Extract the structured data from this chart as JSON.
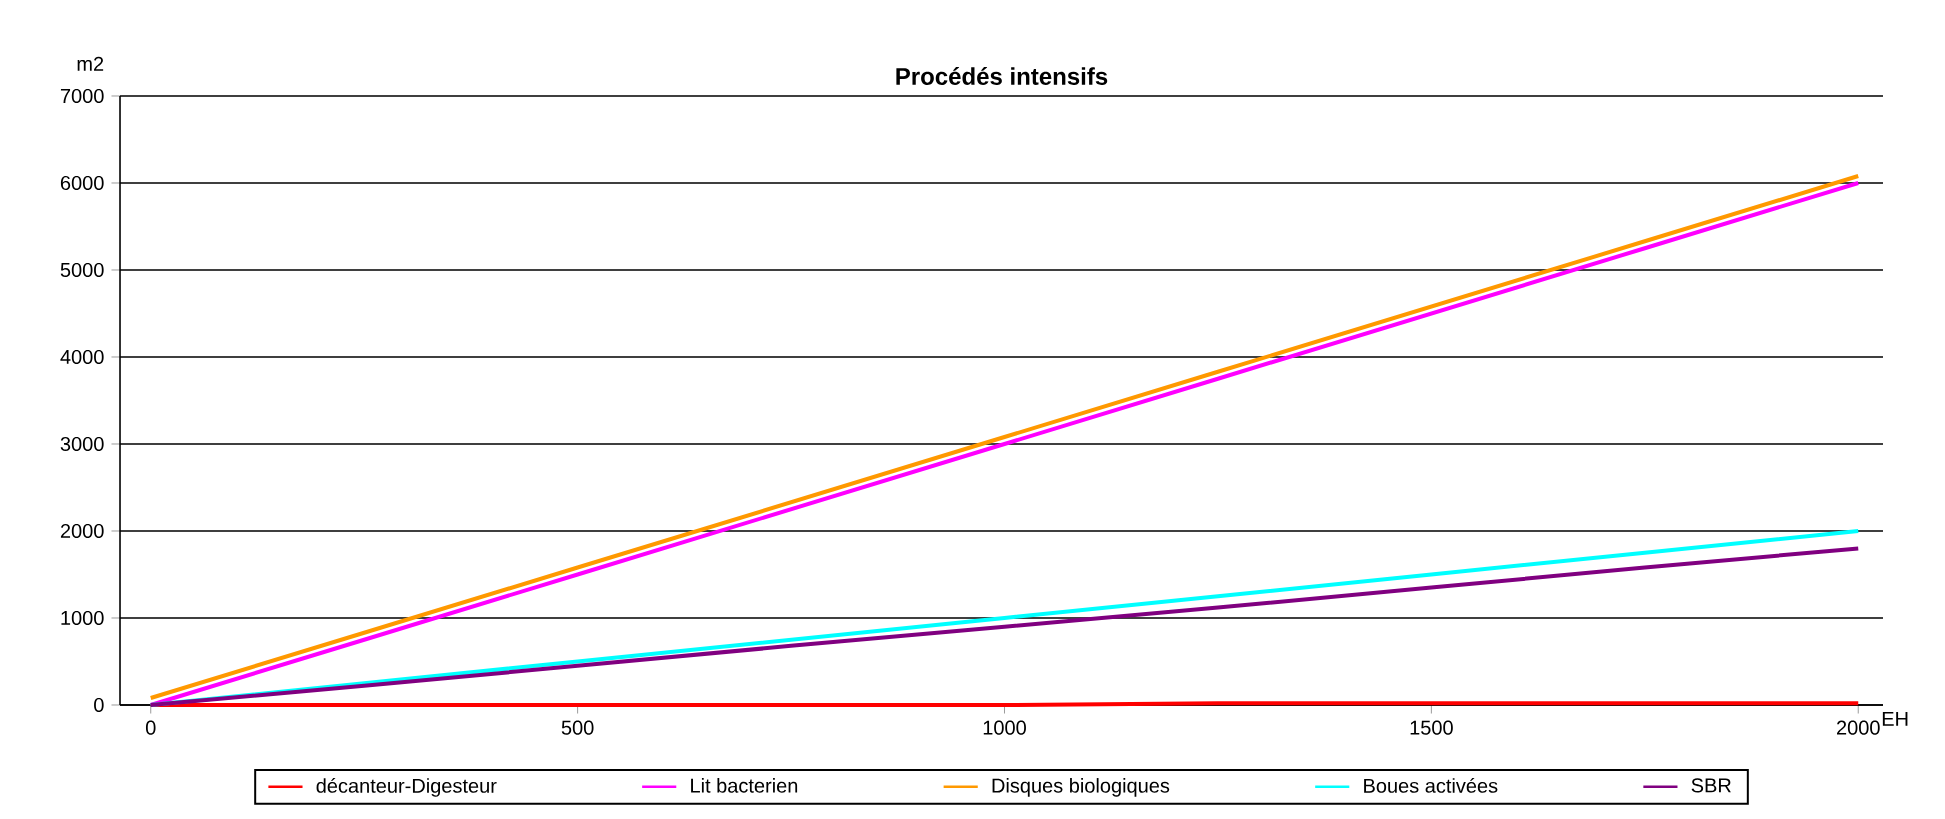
{
  "chart_data": {
    "type": "line",
    "title": "Procédés intensifs",
    "ylabel": "m2",
    "xlabel": "EH",
    "x": [
      0,
      250,
      500,
      750,
      1000,
      1250,
      1500,
      1750,
      2000
    ],
    "series": [
      {
        "name": "décanteur-Digesteur",
        "color": "#ff0000",
        "values": [
          0,
          0,
          0,
          0,
          0,
          20,
          20,
          20,
          20
        ]
      },
      {
        "name": "Lit bacterien",
        "color": "#ff00ff",
        "values": [
          0,
          750,
          1500,
          2250,
          3000,
          3750,
          4500,
          5250,
          6000
        ]
      },
      {
        "name": "Disques biologiques",
        "color": "#ff9900",
        "values": [
          80,
          830,
          1580,
          2330,
          3080,
          3830,
          4580,
          5330,
          6080
        ]
      },
      {
        "name": "Boues activées",
        "color": "#00ffff",
        "values": [
          0,
          250,
          500,
          750,
          1000,
          1250,
          1500,
          1750,
          2000
        ]
      },
      {
        "name": "SBR",
        "color": "#800080",
        "values": [
          0,
          220,
          450,
          680,
          900,
          1120,
          1350,
          1580,
          1800
        ]
      }
    ],
    "xlim": [
      -36,
      2029
    ],
    "ylim": [
      0,
      7000
    ],
    "xticks": [
      0,
      500,
      1000,
      1500,
      2000
    ],
    "yticks": [
      0,
      1000,
      2000,
      3000,
      4000,
      5000,
      6000,
      7000
    ],
    "grid": "y",
    "legend": "bottom",
    "marker": "none",
    "line_style": "solid"
  }
}
